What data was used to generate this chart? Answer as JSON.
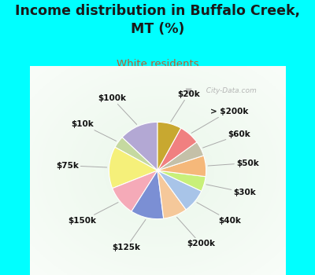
{
  "title": "Income distribution in Buffalo Creek,\nMT (%)",
  "subtitle": "White residents",
  "title_color": "#1a1a1a",
  "subtitle_color": "#b85c30",
  "bg_color": "#00ffff",
  "labels": [
    "$100k",
    "$10k",
    "$75k",
    "$150k",
    "$125k",
    "$200k",
    "$40k",
    "$30k",
    "$50k",
    "$60k",
    "> $200k",
    "$20k"
  ],
  "values": [
    13,
    4,
    14,
    10,
    11,
    8,
    8,
    5,
    7,
    5,
    7,
    8
  ],
  "colors": [
    "#b3a8d4",
    "#c5d9a0",
    "#f5f07a",
    "#f5aab8",
    "#7b8fd4",
    "#f5c89a",
    "#a8c4e8",
    "#c8f07a",
    "#f5b87a",
    "#c4c0a8",
    "#f08080",
    "#c8a830"
  ],
  "startangle": 90,
  "watermark": "  City-Data.com"
}
